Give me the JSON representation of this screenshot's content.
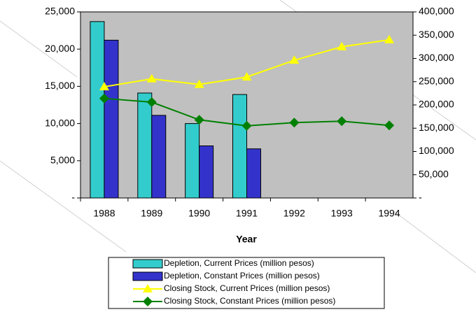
{
  "chart_data": {
    "type": "bar",
    "x_label": "Year",
    "categories": [
      "1988",
      "1989",
      "1990",
      "1991",
      "1992",
      "1993",
      "1994"
    ],
    "series": [
      {
        "name": "Depletion, Current Prices (million pesos)",
        "type": "bar",
        "color": "#33cccc",
        "axis": "y",
        "values": [
          23700,
          14100,
          10000,
          13900,
          null,
          null,
          null
        ]
      },
      {
        "name": "Depletion, Constant Prices (million pesos)",
        "type": "bar",
        "color": "#3333cc",
        "axis": "y",
        "values": [
          21200,
          11100,
          7000,
          6600,
          null,
          null,
          null
        ]
      },
      {
        "name": "Closing Stock, Current Prices (million pesos)",
        "type": "line",
        "marker": "triangle",
        "color": "#ffff00",
        "axis": "y2",
        "values": [
          239000,
          256000,
          244000,
          260000,
          296000,
          325000,
          340000
        ]
      },
      {
        "name": "Closing Stock, Constant Prices (million pesos)",
        "type": "line",
        "marker": "diamond",
        "color": "#008000",
        "axis": "y2",
        "values": [
          214000,
          206000,
          168000,
          155000,
          162000,
          165000,
          156000
        ]
      }
    ],
    "ylim": [
      0,
      25000
    ],
    "yticks": [
      {
        "value": 0,
        "label": "-"
      },
      {
        "value": 5000,
        "label": "5,000"
      },
      {
        "value": 10000,
        "label": "10,000"
      },
      {
        "value": 15000,
        "label": "15,000"
      },
      {
        "value": 20000,
        "label": "20,000"
      },
      {
        "value": 25000,
        "label": "25,000"
      }
    ],
    "y2lim": [
      0,
      400000
    ],
    "y2ticks": [
      {
        "value": 0,
        "label": "-"
      },
      {
        "value": 50000,
        "label": "50,000"
      },
      {
        "value": 100000,
        "label": "100,000"
      },
      {
        "value": 150000,
        "label": "150,000"
      },
      {
        "value": 200000,
        "label": "200,000"
      },
      {
        "value": 250000,
        "label": "250,000"
      },
      {
        "value": 300000,
        "label": "300,000"
      },
      {
        "value": 350000,
        "label": "350,000"
      },
      {
        "value": 400000,
        "label": "400,000"
      }
    ],
    "grid": false,
    "legend": "bottom"
  }
}
